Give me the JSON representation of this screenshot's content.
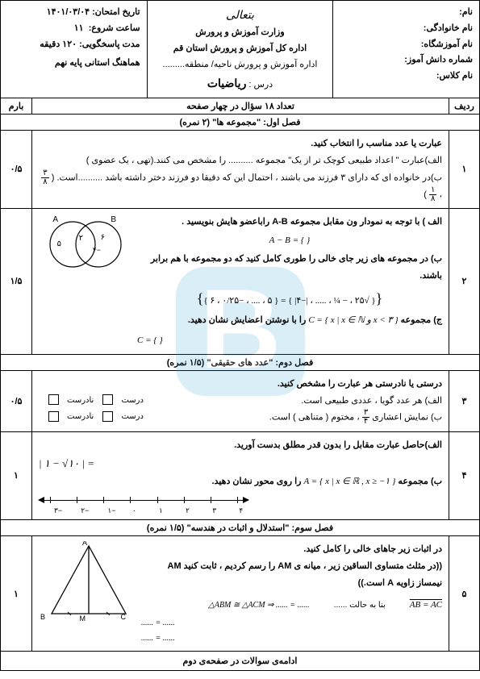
{
  "header": {
    "right": {
      "name_label": "نام:",
      "lastname_label": "نام خانوادگی:",
      "school_label": "نام آموزشگاه:",
      "student_no_label": "شماره دانش آموز:",
      "class_label": "نام کلاس:"
    },
    "center": {
      "logo": "بتعالی",
      "ministry": "وزارت آموزش و پرورش",
      "dept": "اداره کل آموزش و پرورش استان قم",
      "district": "اداره آموزش و پرورش ناحیه/ منطقه.........",
      "lesson_label": "درس :",
      "lesson": "ریاضیات"
    },
    "left": {
      "date_label": "تاریخ امتحان:",
      "date": "۱۴۰۱/۰۳/۰۴",
      "start_label": "ساعت شروع:",
      "start": "۱۱",
      "dur_label": "مدت پاسخگویی:",
      "dur": "۱۲۰ دقیقه",
      "coord": "هماهنگ استانی پایه نهم"
    }
  },
  "cols": {
    "row": "ردیف",
    "count": "تعداد ۱۸ سؤال در چهار صفحه",
    "mark": "بارم"
  },
  "section1": "فصل اول: \"مجموعه ها\"  (۲ نمره)",
  "q1": {
    "num": "۱",
    "mark": "۰/۵",
    "prompt": "عبارت یا عدد مناسب را انتخاب کنید.",
    "a": "الف)عبارت \" اعداد طبیعی کوچک تر از یک\" مجموعه .......... را مشخص می کنند.(تهی ، یک عضوی )",
    "b_pre": "ب)در خانواده ای که دارای ۳ فرزند می باشند ، احتمال این که دقیقا دو فرزند دختر داشته باشد ..........است.",
    "opt1_top": "۳",
    "opt1_bot": "۸",
    "opt2_top": "۱",
    "opt2_bot": "۸",
    "comma": "، ",
    "paren_l": "(",
    "paren_r": ")"
  },
  "q2": {
    "num": "۲",
    "mark": "۱/۵",
    "a": "الف ) با توجه به نمودار ون مقابل مجموعه A-B راباعضو هایش بنویسید .",
    "ab_expr": "A − B = {                  }",
    "b": "ب) در مجموعه های زیر جای خالی را طوری کامل کنید که دو مجموعه با هم برابر باشند.",
    "set_row": "{ √۲۵ ، − ¼ ، ..... ، |−۴| } = { ۵ ، .... ، −۰/۲۵ ، ۶ }",
    "c_pre": "ج) مجموعه",
    "c_set": "C = { x | x ∈ ℕ  و  x < ۳ }",
    "c_post": "را با نوشتن اعضایش نشان دهید.",
    "c_ans": "C = {                 }",
    "venn": {
      "A": "A",
      "B": "B",
      "a5": "۵",
      "a2": "۲",
      "am4": "−۴",
      "a6": "۶"
    }
  },
  "section2": "فصل دوم: \"عدد های حقیقی\" (۱/۵ نمره)",
  "q3": {
    "num": "۳",
    "mark": "۰/۵",
    "prompt": "درستی یا نادرستی هر عبارت را مشخص کنید.",
    "a": "الف) هر عدد گویا ، عددی طبیعی است.",
    "b_pre": "ب) نمایش اعشاری",
    "b_frac_top": "۳",
    "b_frac_bot": "۴",
    "b_post": "، مختوم ( متناهی ) است.",
    "true": "درست",
    "false": "نادرست"
  },
  "q4": {
    "num": "۴",
    "mark": "۱",
    "a": "الف)حاصل عبارت مقابل را بدون قدر مطلق بدست آورید.",
    "expr": "| ۱ − √۱۰ | =",
    "b_pre": "ب) مجموعه",
    "b_set": "A = { x | x ∈ ℝ , x ≥ −۱ }",
    "b_post": "را روی محور نشان دهید.",
    "ticks": [
      "−۳",
      "−۲",
      "−۱",
      "۰",
      "۱",
      "۲",
      "۳",
      "۴"
    ]
  },
  "section3": "فصل سوم: \"استدلال و اثبات در هندسه\" (۱/۵ نمره)",
  "q5": {
    "num": "۵",
    "mark": "۱",
    "prompt": "در اثبات زیر جاهای خالی را کامل کنید.",
    "given": "((در مثلث متساوی الساقین زیر ، میانه ی AM را رسم کردیم ، ثابت کنید AM نیمساز زاویه A است.))",
    "eq1": "AB = AC",
    "case": "بنا به حالت ......",
    "tri": "△ABM ≅ △ACM  ⇒  ...... = ......",
    "dots1": "...... = ......",
    "dots2": "...... = ......",
    "labels": {
      "A": "A",
      "B": "B",
      "C": "C",
      "M": "M"
    }
  },
  "footer": "ادامه‌ی سوالات در صفحه‌ی دوم"
}
